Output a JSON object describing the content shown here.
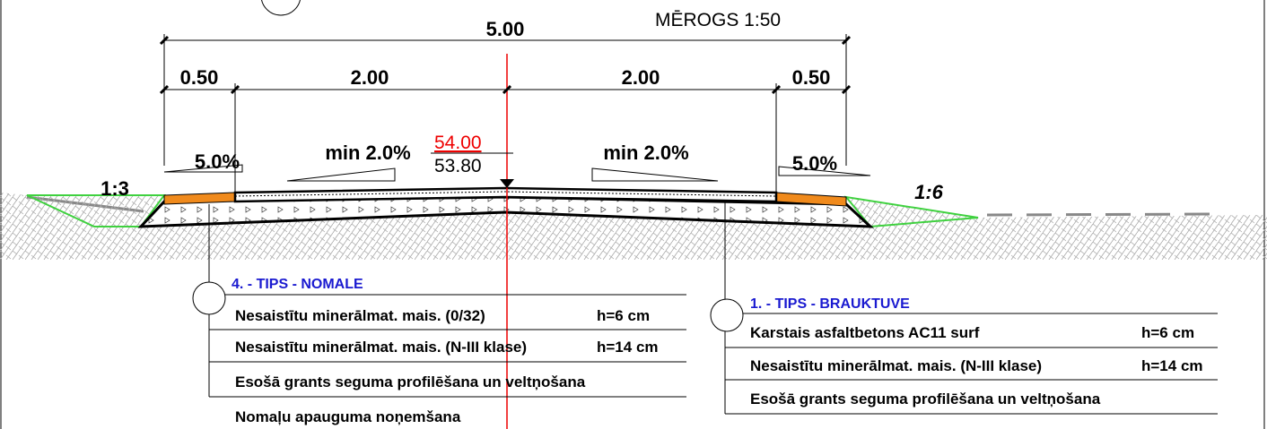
{
  "header": {
    "scale": "MĒROGS 1:50"
  },
  "dimensions": {
    "total": "5.00",
    "segments": [
      "0.50",
      "2.00",
      "2.00",
      "0.50"
    ]
  },
  "slopes": {
    "left_shoulder": "5.0%",
    "left_lane": "min 2.0%",
    "right_lane": "min 2.0%",
    "right_shoulder": "5.0%",
    "left_embankment": "1:3",
    "right_embankment": "1:6"
  },
  "elevation": {
    "design": "54.00",
    "existing": "53.80"
  },
  "legend_left": {
    "title": "4. - TIPS - NOMALE",
    "rows": [
      [
        "Nesaistītu minerālmat. mais. (0/32)",
        "h=6 cm"
      ],
      [
        "Nesaistītu minerālmat. mais. (N-III klase)",
        "h=14 cm"
      ],
      [
        "Esošā grants seguma profilēšana un veltņošana"
      ],
      [
        "Nomaļu apauguma noņemšana"
      ]
    ]
  },
  "legend_right": {
    "title": "1. - TIPS - BRAUKTUVE",
    "rows": [
      [
        "Karstais asfaltbetons AC11 surf",
        "h=6 cm"
      ],
      [
        "Nesaistītu minerālmat. mais. (N-III klase)",
        "h=14 cm"
      ],
      [
        "Esošā grants seguma profilēšana un veltņošana"
      ]
    ]
  }
}
